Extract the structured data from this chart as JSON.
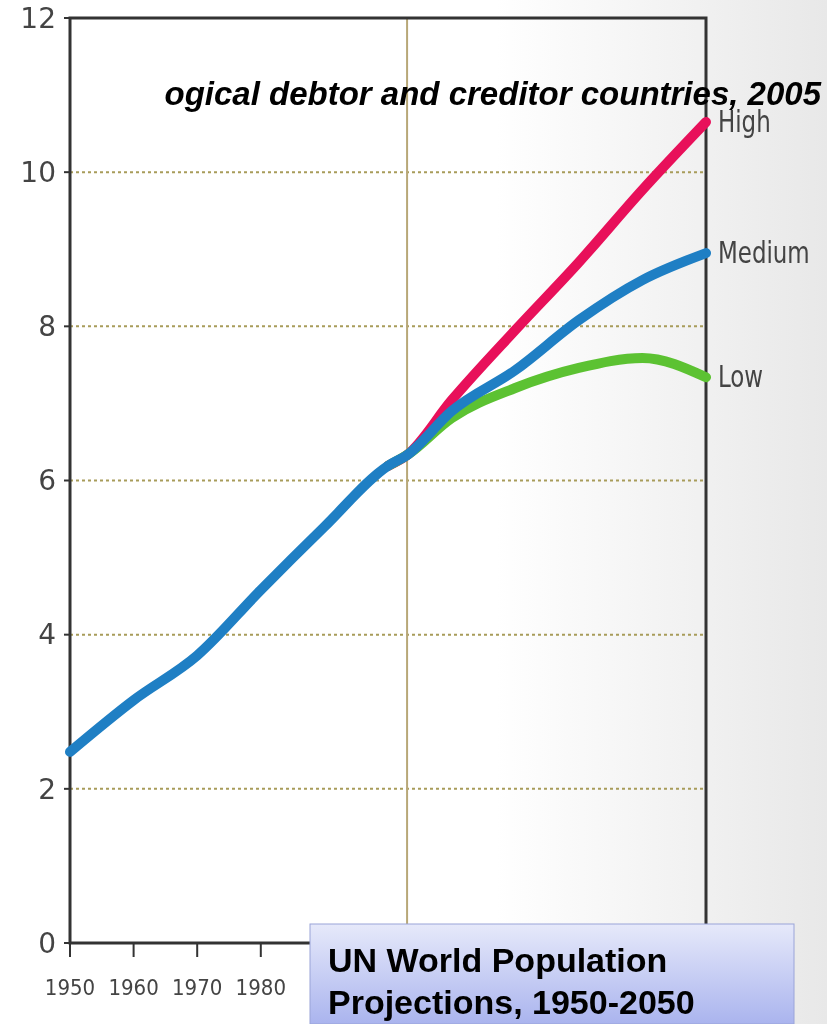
{
  "chart_data": {
    "type": "line",
    "title": "ogical debtor and creditor countries, 2005",
    "annotations": [
      "UN World Population Projections, 1950-2050"
    ],
    "xlim": [
      1950,
      2050
    ],
    "xticks": [
      1950,
      1960,
      1970,
      1980
    ],
    "ylim": [
      0,
      12
    ],
    "yticks": [
      0,
      2,
      4,
      6,
      8,
      10,
      12
    ],
    "grid": "y",
    "ref_lines": [
      {
        "axis": "x",
        "value": 2003,
        "color": "#b8a878"
      }
    ],
    "series": [
      {
        "name": "High",
        "color": "#e8105a",
        "x": [
          2000,
          2003,
          2010,
          2020,
          2030,
          2040,
          2050
        ],
        "values": [
          6.19,
          6.33,
          7.04,
          7.95,
          8.83,
          9.77,
          10.65
        ]
      },
      {
        "name": "Low",
        "color": "#5cc232",
        "x": [
          2000,
          2003,
          2010,
          2020,
          2030,
          2040,
          2050
        ],
        "values": [
          6.19,
          6.33,
          6.81,
          7.2,
          7.46,
          7.59,
          7.34
        ]
      },
      {
        "name": "Medium",
        "color": "#1f7fc4",
        "x": [
          1950,
          1960,
          1970,
          1980,
          1990,
          2000,
          2003,
          2010,
          2020,
          2030,
          2040,
          2050
        ],
        "values": [
          2.48,
          3.15,
          3.73,
          4.58,
          5.4,
          6.19,
          6.33,
          6.9,
          7.43,
          8.08,
          8.6,
          8.95
        ]
      }
    ]
  }
}
